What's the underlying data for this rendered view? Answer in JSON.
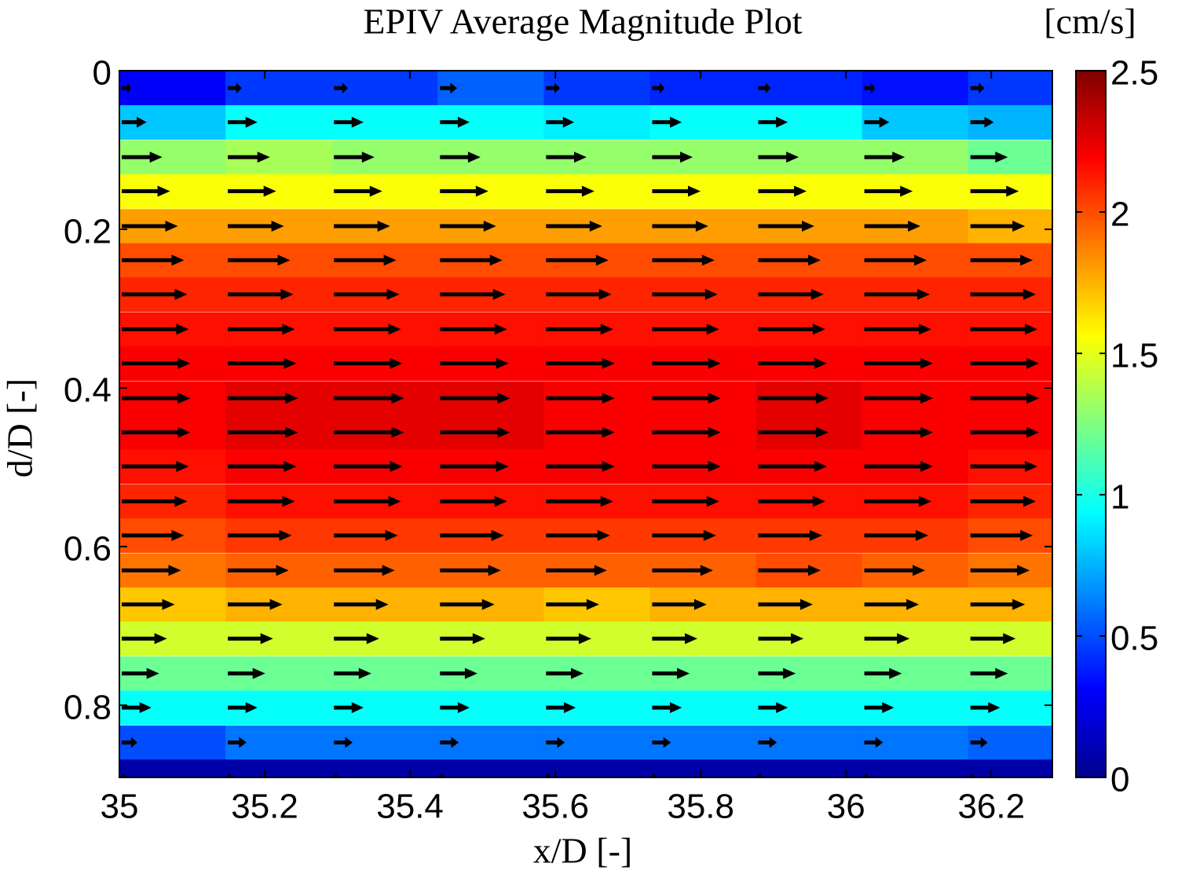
{
  "chart_data": {
    "type": "heatmap-quiver",
    "title": "EPIV Average Magnitude Plot",
    "colorbar_label": "[cm/s]",
    "xlabel": "x/D [-]",
    "ylabel": "d/D [-]",
    "colormap": "jet",
    "arrow_color": "#000000",
    "x": [
      35,
      35.146,
      35.292,
      35.438,
      35.584,
      35.73,
      35.876,
      36.022,
      36.168
    ],
    "y": [
      0.022,
      0.065,
      0.109,
      0.152,
      0.196,
      0.239,
      0.282,
      0.326,
      0.369,
      0.413,
      0.456,
      0.499,
      0.543,
      0.586,
      0.63,
      0.673,
      0.716,
      0.76,
      0.803,
      0.847,
      0.89
    ],
    "z": [
      [
        0.3,
        0.45,
        0.45,
        0.55,
        0.45,
        0.4,
        0.4,
        0.35,
        0.45
      ],
      [
        0.8,
        0.95,
        0.95,
        0.95,
        0.9,
        0.95,
        0.95,
        0.8,
        0.75
      ],
      [
        1.3,
        1.35,
        1.3,
        1.3,
        1.3,
        1.3,
        1.3,
        1.3,
        1.2
      ],
      [
        1.55,
        1.55,
        1.55,
        1.55,
        1.55,
        1.55,
        1.55,
        1.55,
        1.55
      ],
      [
        1.8,
        1.8,
        1.8,
        1.8,
        1.8,
        1.8,
        1.8,
        1.8,
        1.75
      ],
      [
        2.0,
        2.0,
        2.0,
        2.0,
        2.0,
        2.0,
        2.0,
        2.0,
        2.0
      ],
      [
        2.1,
        2.1,
        2.1,
        2.1,
        2.1,
        2.1,
        2.1,
        2.1,
        2.1
      ],
      [
        2.15,
        2.15,
        2.15,
        2.15,
        2.15,
        2.15,
        2.15,
        2.15,
        2.15
      ],
      [
        2.2,
        2.2,
        2.2,
        2.2,
        2.2,
        2.2,
        2.2,
        2.2,
        2.2
      ],
      [
        2.2,
        2.25,
        2.25,
        2.25,
        2.2,
        2.2,
        2.25,
        2.2,
        2.2
      ],
      [
        2.2,
        2.25,
        2.25,
        2.25,
        2.2,
        2.2,
        2.25,
        2.2,
        2.2
      ],
      [
        2.15,
        2.2,
        2.2,
        2.2,
        2.2,
        2.2,
        2.2,
        2.2,
        2.15
      ],
      [
        2.1,
        2.15,
        2.15,
        2.15,
        2.15,
        2.15,
        2.15,
        2.15,
        2.1
      ],
      [
        2.0,
        2.05,
        2.05,
        2.05,
        2.05,
        2.05,
        2.05,
        2.05,
        2.0
      ],
      [
        1.9,
        1.95,
        1.95,
        1.95,
        1.95,
        1.95,
        2.0,
        1.95,
        1.9
      ],
      [
        1.7,
        1.75,
        1.75,
        1.75,
        1.7,
        1.75,
        1.75,
        1.75,
        1.75
      ],
      [
        1.45,
        1.45,
        1.45,
        1.45,
        1.45,
        1.45,
        1.45,
        1.45,
        1.45
      ],
      [
        1.2,
        1.2,
        1.2,
        1.2,
        1.2,
        1.2,
        1.2,
        1.2,
        1.2
      ],
      [
        0.95,
        0.95,
        0.95,
        0.95,
        0.95,
        0.95,
        0.95,
        0.95,
        0.95
      ],
      [
        0.5,
        0.6,
        0.6,
        0.6,
        0.6,
        0.6,
        0.6,
        0.6,
        0.55
      ],
      [
        0.1,
        0.1,
        0.1,
        0.1,
        0.1,
        0.1,
        0.1,
        0.1,
        0.1
      ]
    ],
    "xlim": [
      35,
      36.284
    ],
    "ylim": [
      0,
      0.891
    ],
    "xticks": [
      35,
      35.2,
      35.4,
      35.6,
      35.8,
      36,
      36.2
    ],
    "yticks": [
      0,
      0.2,
      0.4,
      0.6,
      0.8
    ],
    "clim": [
      0,
      2.5
    ],
    "cticks": [
      0,
      0.5,
      1,
      1.5,
      2,
      2.5
    ]
  }
}
